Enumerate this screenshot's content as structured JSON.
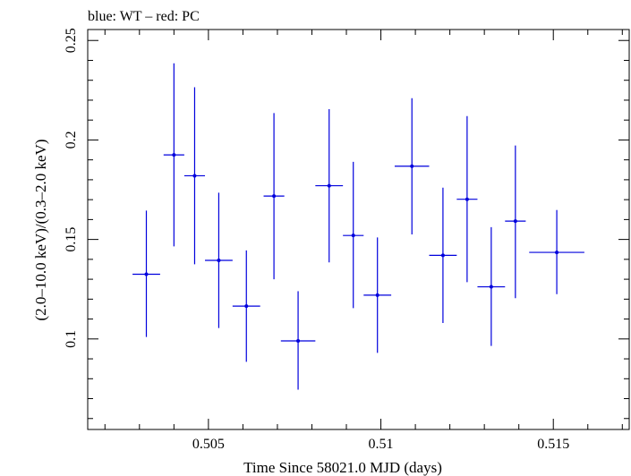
{
  "chart_data": {
    "type": "scatter",
    "title": "blue: WT – red: PC",
    "xlabel": "Time Since 58021.0 MJD (days)",
    "ylabel": "(2.0–10.0 keV)/(0.3–2.0 keV)",
    "xlim": [
      0.5015,
      0.5172
    ],
    "ylim": [
      0.0545,
      0.2555
    ],
    "x_ticks": [
      {
        "value": 0.505,
        "label": "0.505"
      },
      {
        "value": 0.51,
        "label": "0.51"
      },
      {
        "value": 0.515,
        "label": "0.515"
      }
    ],
    "y_ticks": [
      {
        "value": 0.1,
        "label": "0.1"
      },
      {
        "value": 0.15,
        "label": "0.15"
      },
      {
        "value": 0.2,
        "label": "0.2"
      },
      {
        "value": 0.25,
        "label": "0.25"
      }
    ],
    "grid": false,
    "series": [
      {
        "color": "#0000dd",
        "points": [
          {
            "x": 0.5032,
            "xerr": 0.0004,
            "y": 0.1325,
            "ylo": 0.101,
            "yhi": 0.1645
          },
          {
            "x": 0.504,
            "xerr": 0.0003,
            "y": 0.1925,
            "ylo": 0.1465,
            "yhi": 0.2385
          },
          {
            "x": 0.5046,
            "xerr": 0.0003,
            "y": 0.182,
            "ylo": 0.1375,
            "yhi": 0.2265
          },
          {
            "x": 0.5053,
            "xerr": 0.0004,
            "y": 0.1395,
            "ylo": 0.1055,
            "yhi": 0.1735
          },
          {
            "x": 0.5061,
            "xerr": 0.0004,
            "y": 0.1165,
            "ylo": 0.0885,
            "yhi": 0.1445
          },
          {
            "x": 0.5069,
            "xerr": 0.0003,
            "y": 0.1718,
            "ylo": 0.13,
            "yhi": 0.2135
          },
          {
            "x": 0.5076,
            "xerr": 0.0005,
            "y": 0.099,
            "ylo": 0.0745,
            "yhi": 0.124
          },
          {
            "x": 0.5085,
            "xerr": 0.0004,
            "y": 0.177,
            "ylo": 0.1385,
            "yhi": 0.2155
          },
          {
            "x": 0.5092,
            "xerr": 0.0003,
            "y": 0.152,
            "ylo": 0.1155,
            "yhi": 0.189
          },
          {
            "x": 0.5099,
            "xerr": 0.0004,
            "y": 0.122,
            "ylo": 0.093,
            "yhi": 0.151
          },
          {
            "x": 0.5109,
            "xerr": 0.0005,
            "y": 0.1868,
            "ylo": 0.1525,
            "yhi": 0.221
          },
          {
            "x": 0.5118,
            "xerr": 0.0004,
            "y": 0.142,
            "ylo": 0.108,
            "yhi": 0.176
          },
          {
            "x": 0.5125,
            "xerr": 0.0003,
            "y": 0.1702,
            "ylo": 0.1285,
            "yhi": 0.212
          },
          {
            "x": 0.5132,
            "xerr": 0.0004,
            "y": 0.1262,
            "ylo": 0.0965,
            "yhi": 0.1562
          },
          {
            "x": 0.5139,
            "xerr": 0.0003,
            "y": 0.1592,
            "ylo": 0.1205,
            "yhi": 0.1972
          },
          {
            "x": 0.5151,
            "xerr": 0.0008,
            "y": 0.1435,
            "ylo": 0.1225,
            "yhi": 0.1648
          }
        ]
      }
    ]
  }
}
